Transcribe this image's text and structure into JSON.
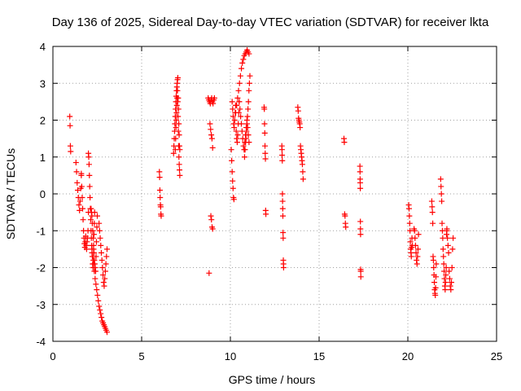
{
  "chart_data": {
    "type": "scatter",
    "title": "Day 136 of 2025, Sidereal Day-to-day VTEC variation (SDTVAR) for receiver lkta",
    "xlabel": "GPS time / hours",
    "ylabel": "SDTVAR / TECUs",
    "xlim": [
      0,
      25
    ],
    "ylim": [
      -4,
      4
    ],
    "x_ticks": [
      "0",
      "5",
      "10",
      "15",
      "20",
      "25"
    ],
    "y_ticks": [
      "-4",
      "-3",
      "-2",
      "-1",
      "0",
      "1",
      "2",
      "3",
      "4"
    ],
    "grid": true,
    "marker": "+",
    "marker_color": "#ff0000",
    "segments": [
      {
        "x0": 0.95,
        "x1": 1.0,
        "values": [
          2.1,
          1.85,
          1.3,
          1.15
        ]
      },
      {
        "x0": 1.3,
        "x1": 1.6,
        "values": [
          0.85,
          0.6,
          0.3,
          0.1,
          -0.1,
          -0.3,
          -0.45,
          -0.2,
          0.15,
          0.55
        ]
      },
      {
        "x0": 1.6,
        "x1": 2.0,
        "values": [
          0.5,
          0.2,
          -0.1,
          -0.4,
          -0.7,
          -1.0,
          -1.2,
          -1.35,
          -1.45,
          -1.3,
          -1.15,
          -1.4,
          -1.5,
          -1.3,
          -1.2,
          -1.0,
          -0.5
        ]
      },
      {
        "x0": 2.0,
        "x1": 2.35,
        "values": [
          1.1,
          1.0,
          0.8,
          0.5,
          0.2,
          -0.1,
          -0.4,
          -0.7,
          -1.0,
          -1.2,
          -1.4,
          -1.6,
          -1.7,
          -1.9,
          -2.0,
          -1.8,
          -1.5,
          -1.1,
          -0.8,
          -0.5
        ]
      },
      {
        "x0": 2.15,
        "x1": 2.5,
        "values": [
          -0.4,
          -0.5,
          -0.6,
          -0.8,
          -1.0,
          -1.2,
          -1.4,
          -1.6,
          -1.8,
          -1.9,
          -2.0,
          -2.1,
          -1.7,
          -1.3,
          -0.9,
          -0.6
        ]
      },
      {
        "x0": 2.2,
        "x1": 3.05,
        "values": [
          -1.5,
          -1.7,
          -1.9,
          -2.1,
          -2.3,
          -2.45,
          -2.6,
          -2.75,
          -2.9,
          -3.05,
          -3.15,
          -3.25,
          -3.35,
          -3.45,
          -3.5,
          -3.55,
          -3.6,
          -3.65,
          -3.7,
          -3.75
        ]
      },
      {
        "x0": 2.6,
        "x1": 3.05,
        "values": [
          -0.8,
          -1.0,
          -1.2,
          -1.4,
          -1.6,
          -1.8,
          -2.0,
          -2.2,
          -2.4,
          -2.5,
          -2.3,
          -2.1,
          -1.9,
          -1.7,
          -1.5
        ]
      },
      {
        "x0": 6.0,
        "x1": 6.1,
        "values": [
          0.6,
          0.45,
          0.1,
          -0.1,
          -0.3,
          -0.35,
          -0.55,
          -0.6
        ]
      },
      {
        "x0": 6.8,
        "x1": 7.15,
        "values": [
          1.1,
          1.3,
          1.5,
          1.7,
          1.9,
          2.1,
          2.3,
          2.5,
          2.65,
          2.8,
          2.9,
          3.0,
          3.1,
          3.15,
          2.6,
          2.3,
          1.9,
          1.6,
          1.3,
          1.2
        ]
      },
      {
        "x0": 6.9,
        "x1": 7.15,
        "values": [
          1.2,
          1.5,
          1.8,
          2.0,
          2.2,
          2.4,
          2.6,
          2.8,
          2.5,
          2.1,
          1.7,
          1.3,
          1.0,
          0.8,
          0.65,
          0.5
        ]
      },
      {
        "x0": 8.75,
        "x1": 9.1,
        "values": [
          2.6,
          2.55,
          2.5,
          2.45,
          2.55,
          2.6,
          2.5,
          2.45,
          2.55,
          2.6
        ]
      },
      {
        "x0": 8.85,
        "x1": 9.0,
        "values": [
          1.9,
          1.75,
          1.6,
          1.5,
          1.25
        ]
      },
      {
        "x0": 8.9,
        "x1": 9.0,
        "values": [
          -0.6,
          -0.7,
          -0.9,
          -0.95
        ]
      },
      {
        "x0": 8.8,
        "x1": 8.8,
        "values": [
          -2.15
        ]
      },
      {
        "x0": 10.05,
        "x1": 10.2,
        "values": [
          1.2,
          0.9,
          0.6,
          0.35,
          0.15,
          -0.1,
          -0.15
        ]
      },
      {
        "x0": 10.1,
        "x1": 10.5,
        "values": [
          2.5,
          2.3,
          2.1,
          1.9,
          1.8,
          2.0,
          2.2,
          2.4,
          1.7,
          1.5,
          1.4,
          1.6,
          1.9,
          2.2,
          2.5
        ]
      },
      {
        "x0": 10.3,
        "x1": 11.05,
        "values": [
          2.2,
          2.4,
          2.6,
          2.8,
          3.0,
          3.2,
          3.4,
          3.55,
          3.65,
          3.75,
          3.8,
          3.85,
          3.9,
          3.85,
          3.8
        ]
      },
      {
        "x0": 10.5,
        "x1": 11.05,
        "values": [
          2.5,
          2.3,
          2.1,
          1.9,
          1.7,
          1.5,
          1.3,
          1.2,
          1.4,
          1.6,
          1.8,
          2.0,
          1.8,
          1.6,
          1.4
        ]
      },
      {
        "x0": 10.8,
        "x1": 11.1,
        "values": [
          1.0,
          1.2,
          1.4,
          1.5,
          1.7,
          1.9,
          2.1,
          2.3,
          2.5,
          2.8,
          3.0,
          3.2
        ]
      },
      {
        "x0": 11.9,
        "x1": 12.0,
        "values": [
          2.35,
          2.3,
          1.9,
          1.65,
          1.3,
          1.1,
          0.95,
          -0.45,
          -0.55
        ]
      },
      {
        "x0": 12.9,
        "x1": 13.0,
        "values": [
          1.3,
          1.2,
          1.05,
          0.9,
          0.0,
          -0.2,
          -0.4,
          -0.6,
          -1.05,
          -1.2,
          -1.8,
          -1.9,
          -2.0
        ]
      },
      {
        "x0": 13.8,
        "x1": 14.1,
        "values": [
          2.35,
          2.25,
          2.05,
          2.0,
          1.95,
          1.9,
          1.8,
          1.3,
          1.2,
          1.1,
          1.0,
          0.9,
          0.8,
          0.6,
          0.4
        ]
      },
      {
        "x0": 16.4,
        "x1": 16.5,
        "values": [
          1.5,
          1.4,
          -0.55,
          -0.6,
          -0.8,
          -0.9
        ]
      },
      {
        "x0": 17.3,
        "x1": 17.35,
        "values": [
          0.75,
          0.6,
          0.4,
          0.3,
          0.15,
          -0.75,
          -0.95,
          -1.1,
          -2.05,
          -2.1,
          -2.25
        ]
      },
      {
        "x0": 20.05,
        "x1": 20.25,
        "values": [
          -0.3,
          -0.4,
          -0.6,
          -0.8,
          -1.0,
          -1.3,
          -1.5,
          -1.6,
          -1.7,
          -1.45,
          -1.2,
          -1.4
        ]
      },
      {
        "x0": 20.35,
        "x1": 20.6,
        "values": [
          -0.95,
          -1.0,
          -1.2,
          -1.4,
          -1.6,
          -1.8,
          -1.9,
          -1.7,
          -1.5,
          -1.1
        ]
      },
      {
        "x0": 21.35,
        "x1": 21.6,
        "values": [
          -0.2,
          -0.35,
          -0.5,
          -0.8,
          -1.7,
          -1.8,
          -2.0,
          -2.2,
          -2.4,
          -2.6,
          -2.7,
          -2.75,
          -2.55,
          -2.25,
          -1.9
        ]
      },
      {
        "x0": 21.85,
        "x1": 22.2,
        "values": [
          0.4,
          0.2,
          0.0,
          -0.2,
          -0.8,
          -1.0,
          -1.2,
          -1.5,
          -1.7,
          -1.9,
          -2.1,
          -2.3,
          -2.5,
          -2.6,
          -2.4,
          -2.2,
          -2.0,
          -1.1,
          -0.95
        ]
      },
      {
        "x0": 22.2,
        "x1": 22.55,
        "values": [
          -1.0,
          -1.2,
          -1.4,
          -1.6,
          -2.1,
          -2.3,
          -2.5,
          -2.6,
          -2.4,
          -2.0,
          -1.5,
          -1.2
        ]
      }
    ]
  }
}
